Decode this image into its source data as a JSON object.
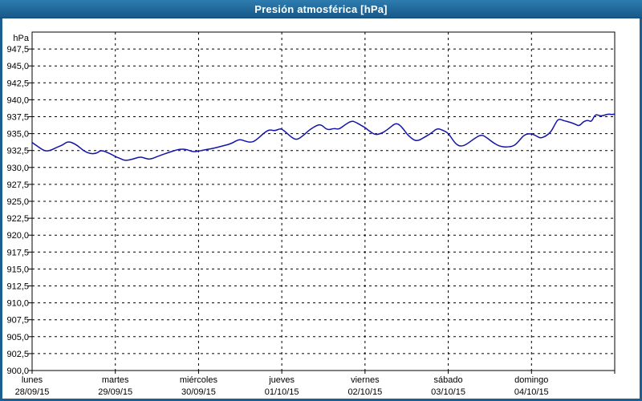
{
  "window": {
    "title": "Presión atmosférica [hPa]"
  },
  "colors": {
    "titlebar_blue": "#216899",
    "frame_blue": "#1e5f92",
    "plot_background": "#ffffff",
    "plot_border": "#000000",
    "gridline": "#000000",
    "series_line": "#1414aa",
    "label_text": "#000000",
    "title_text": "#ffffff"
  },
  "chart_data": {
    "type": "line",
    "title": "Presión atmosférica [hPa]",
    "grid": "dashed",
    "legend": "none",
    "y_axis": {
      "unit_label": "hPa",
      "min": 900,
      "max": 950,
      "tick_step": 2.5,
      "ticks": [
        {
          "value": 947.5,
          "label": "947,5"
        },
        {
          "value": 945.0,
          "label": "945,0"
        },
        {
          "value": 942.5,
          "label": "942,5"
        },
        {
          "value": 940.0,
          "label": "940,0"
        },
        {
          "value": 937.5,
          "label": "937,5"
        },
        {
          "value": 935.0,
          "label": "935,0"
        },
        {
          "value": 932.5,
          "label": "932,5"
        },
        {
          "value": 930.0,
          "label": "930,0"
        },
        {
          "value": 927.5,
          "label": "927,5"
        },
        {
          "value": 925.0,
          "label": "925,0"
        },
        {
          "value": 922.5,
          "label": "922,5"
        },
        {
          "value": 920.0,
          "label": "920,0"
        },
        {
          "value": 917.5,
          "label": "917,5"
        },
        {
          "value": 915.0,
          "label": "915,0"
        },
        {
          "value": 912.5,
          "label": "912,5"
        },
        {
          "value": 910.0,
          "label": "910,0"
        },
        {
          "value": 907.5,
          "label": "907,5"
        },
        {
          "value": 905.0,
          "label": "905,0"
        },
        {
          "value": 902.5,
          "label": "902,5"
        },
        {
          "value": 900.0,
          "label": "900,0"
        }
      ]
    },
    "x_axis": {
      "span_hours": 168,
      "tick_step_hours": 24,
      "days": [
        {
          "name": "lunes",
          "date": "28/09/15",
          "start_hour": 0
        },
        {
          "name": "martes",
          "date": "29/09/15",
          "start_hour": 24
        },
        {
          "name": "miércoles",
          "date": "30/09/15",
          "start_hour": 48
        },
        {
          "name": "jueves",
          "date": "01/10/15",
          "start_hour": 72
        },
        {
          "name": "viernes",
          "date": "02/10/15",
          "start_hour": 96
        },
        {
          "name": "sábado",
          "date": "03/10/15",
          "start_hour": 120
        },
        {
          "name": "domingo",
          "date": "04/10/15",
          "start_hour": 144
        }
      ]
    },
    "series": [
      {
        "name": "Presión atmosférica",
        "unit": "hPa",
        "points": [
          [
            0,
            933.7
          ],
          [
            1.9,
            933.0
          ],
          [
            3.7,
            932.4
          ],
          [
            5.3,
            932.5
          ],
          [
            7.2,
            933.0
          ],
          [
            8.8,
            933.3
          ],
          [
            10.4,
            933.9
          ],
          [
            12.7,
            933.4
          ],
          [
            15,
            932.4
          ],
          [
            16.9,
            932.0
          ],
          [
            18.7,
            932.1
          ],
          [
            19.9,
            932.6
          ],
          [
            22.7,
            932.0
          ],
          [
            24,
            931.6
          ],
          [
            25.5,
            931.3
          ],
          [
            26.8,
            931.0
          ],
          [
            28.9,
            931.2
          ],
          [
            31.2,
            931.6
          ],
          [
            32.9,
            931.3
          ],
          [
            34.2,
            931.2
          ],
          [
            37,
            931.8
          ],
          [
            39.3,
            932.2
          ],
          [
            42.3,
            932.7
          ],
          [
            44.4,
            932.7
          ],
          [
            46.3,
            932.3
          ],
          [
            48,
            932.4
          ],
          [
            49.7,
            932.6
          ],
          [
            52.1,
            932.8
          ],
          [
            54.4,
            933.1
          ],
          [
            57.4,
            933.5
          ],
          [
            59.7,
            934.2
          ],
          [
            61.3,
            933.9
          ],
          [
            62.9,
            933.7
          ],
          [
            64.3,
            933.9
          ],
          [
            67.1,
            935.2
          ],
          [
            68.5,
            935.6
          ],
          [
            69.9,
            935.4
          ],
          [
            71.3,
            935.7
          ],
          [
            72,
            935.7
          ],
          [
            73.6,
            935.0
          ],
          [
            75.2,
            934.3
          ],
          [
            76.4,
            934.1
          ],
          [
            78.2,
            934.7
          ],
          [
            79.8,
            935.5
          ],
          [
            82.3,
            936.3
          ],
          [
            83.5,
            936.3
          ],
          [
            85.1,
            935.5
          ],
          [
            87.2,
            935.8
          ],
          [
            88.4,
            935.6
          ],
          [
            90.2,
            936.3
          ],
          [
            92.1,
            936.9
          ],
          [
            93.3,
            936.7
          ],
          [
            95.3,
            936.1
          ],
          [
            96,
            935.9
          ],
          [
            97.7,
            935.2
          ],
          [
            99.1,
            934.8
          ],
          [
            101.1,
            935.1
          ],
          [
            103,
            935.8
          ],
          [
            104.6,
            936.5
          ],
          [
            105.8,
            936.4
          ],
          [
            107.2,
            935.6
          ],
          [
            108.3,
            934.8
          ],
          [
            109.9,
            934.1
          ],
          [
            111.1,
            933.9
          ],
          [
            113.3,
            934.5
          ],
          [
            115.2,
            935.1
          ],
          [
            116.8,
            935.8
          ],
          [
            118.4,
            935.5
          ],
          [
            120,
            935.1
          ],
          [
            121.9,
            933.6
          ],
          [
            123.3,
            933.1
          ],
          [
            125,
            933.3
          ],
          [
            127.3,
            934.2
          ],
          [
            129.6,
            934.9
          ],
          [
            131.4,
            934.3
          ],
          [
            133.1,
            933.6
          ],
          [
            134.9,
            933.1
          ],
          [
            137.2,
            933.0
          ],
          [
            139.1,
            933.2
          ],
          [
            140.7,
            934.1
          ],
          [
            142.1,
            934.9
          ],
          [
            144,
            935.0
          ],
          [
            145.3,
            934.7
          ],
          [
            146.5,
            934.3
          ],
          [
            148.1,
            934.6
          ],
          [
            149.7,
            935.3
          ],
          [
            150.9,
            936.5
          ],
          [
            151.8,
            937.2
          ],
          [
            153.4,
            936.9
          ],
          [
            155,
            936.7
          ],
          [
            156.6,
            936.4
          ],
          [
            157.8,
            936.1
          ],
          [
            159,
            936.8
          ],
          [
            160.3,
            937.0
          ],
          [
            161.3,
            936.7
          ],
          [
            162.4,
            937.9
          ],
          [
            163.8,
            937.6
          ],
          [
            165,
            937.7
          ],
          [
            166.1,
            937.9
          ],
          [
            167.3,
            937.8
          ],
          [
            168,
            937.9
          ]
        ]
      }
    ]
  }
}
